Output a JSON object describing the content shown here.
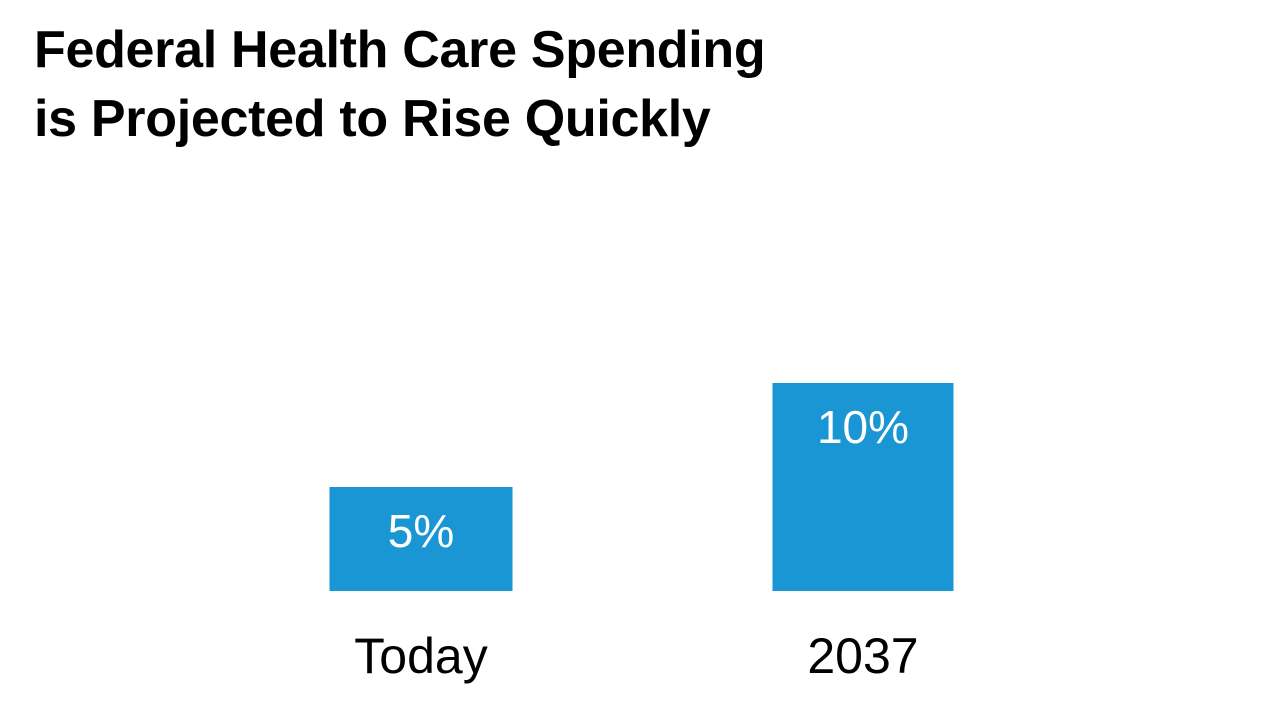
{
  "title_lines": [
    "Federal Health Care Spending",
    "is Projected to Rise Quickly"
  ],
  "chart_data": {
    "type": "bar",
    "title": "Federal Health Care Spending is Projected to Rise Quickly",
    "categories": [
      "Today",
      "2037"
    ],
    "values": [
      5,
      10
    ],
    "value_labels": [
      "5%",
      "10%"
    ],
    "unit": "%",
    "xlabel": "",
    "ylabel": "",
    "ylim": [
      0,
      10
    ],
    "grid": false,
    "legend": "none",
    "bar_color": "#1a96d4"
  }
}
